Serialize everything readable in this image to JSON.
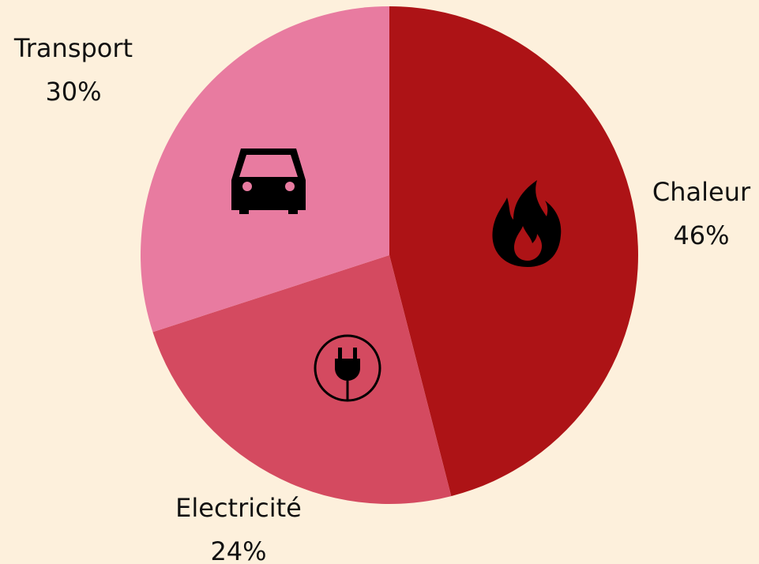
{
  "chart_data": {
    "type": "pie",
    "categories": [
      "Chaleur",
      "Electricité",
      "Transport"
    ],
    "values": [
      46,
      24,
      30
    ],
    "value_labels": [
      "46%",
      "24%",
      "30%"
    ],
    "colors": [
      "#ad1316",
      "#d44a60",
      "#e87ba0"
    ]
  }
}
